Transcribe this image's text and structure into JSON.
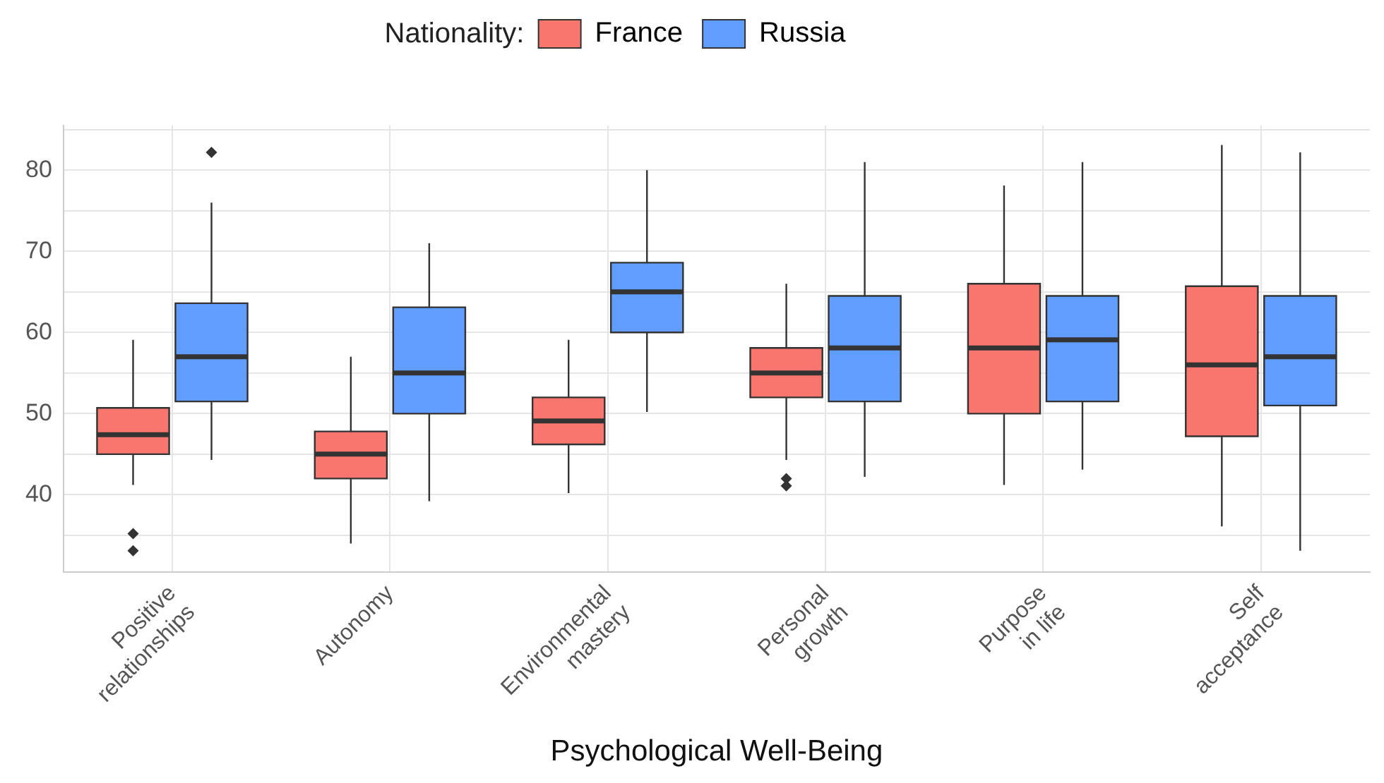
{
  "chart_data": {
    "type": "box",
    "xlabel": "Psychological Well-Being",
    "legend_title": "Nationality:",
    "legend": "top",
    "grid": true,
    "categories": [
      "Positive\nrelationships",
      "Autonomy",
      "Environmental\nmastery",
      "Personal\ngrowth",
      "Purpose\nin life",
      "Self\nacceptance"
    ],
    "ylim": [
      30.5,
      85.5
    ],
    "yticks": [
      {
        "value": 35,
        "label": null
      },
      40,
      {
        "value": 45,
        "label": null
      },
      50,
      {
        "value": 55,
        "label": null
      },
      60,
      {
        "value": 65,
        "label": null
      },
      70,
      {
        "value": 75,
        "label": null
      },
      80,
      {
        "value": 85,
        "label": null
      }
    ],
    "series": [
      {
        "name": "France",
        "color": "#f8766d",
        "boxes": [
          {
            "low": 41.2,
            "q1": 45.0,
            "median": 47.4,
            "q3": 50.7,
            "high": 59.1,
            "outliers": [
              35.2,
              33.1
            ]
          },
          {
            "low": 34.0,
            "q1": 42.0,
            "median": 45.0,
            "q3": 47.8,
            "high": 57.0
          },
          {
            "low": 40.2,
            "q1": 46.2,
            "median": 49.1,
            "q3": 52.0,
            "high": 59.1
          },
          {
            "low": 44.3,
            "q1": 52.0,
            "median": 55.0,
            "q3": 58.1,
            "high": 66.0,
            "outliers": [
              42.0,
              41.1
            ]
          },
          {
            "low": 41.2,
            "q1": 50.0,
            "median": 58.1,
            "q3": 66.0,
            "high": 78.1
          },
          {
            "low": 36.1,
            "q1": 47.2,
            "median": 56.0,
            "q3": 65.7,
            "high": 83.1
          }
        ]
      },
      {
        "name": "Russia",
        "color": "#619cff",
        "boxes": [
          {
            "low": 44.3,
            "q1": 51.5,
            "median": 57.0,
            "q3": 63.6,
            "high": 76.0,
            "outliers": [
              82.2
            ]
          },
          {
            "low": 39.2,
            "q1": 50.0,
            "median": 55.0,
            "q3": 63.1,
            "high": 71.0
          },
          {
            "low": 50.2,
            "q1": 60.0,
            "median": 65.0,
            "q3": 68.6,
            "high": 80.0
          },
          {
            "low": 42.2,
            "q1": 51.5,
            "median": 58.1,
            "q3": 64.5,
            "high": 81.0
          },
          {
            "low": 43.1,
            "q1": 51.5,
            "median": 59.1,
            "q3": 64.5,
            "high": 81.0
          },
          {
            "low": 33.1,
            "q1": 51.0,
            "median": 57.0,
            "q3": 64.5,
            "high": 82.2
          }
        ]
      }
    ]
  }
}
